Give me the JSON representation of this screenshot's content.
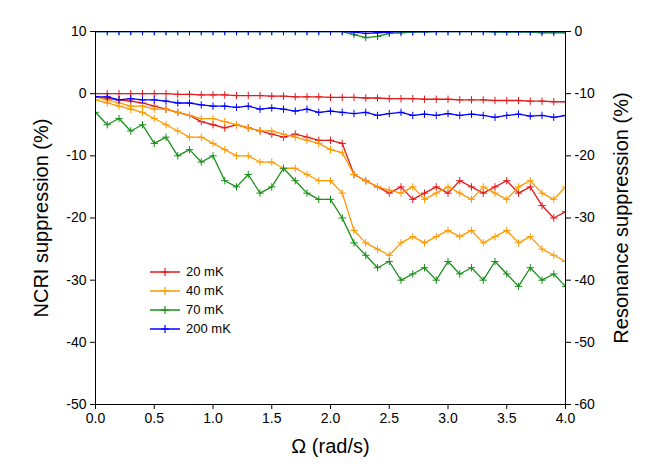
{
  "chart_data": {
    "type": "line",
    "x_label": "Ω (rad/s)",
    "y_label": "NCRI suppression (%)",
    "y2_label": "Resonance suppression (%)",
    "xlim": [
      0,
      4
    ],
    "xticks": [
      {
        "value": 0,
        "label": "0.0"
      },
      {
        "value": 0.5,
        "label": "0.5"
      },
      {
        "value": 1,
        "label": "1.0"
      },
      {
        "value": 1.5,
        "label": "1.5"
      },
      {
        "value": 2,
        "label": "2.0"
      },
      {
        "value": 2.5,
        "label": "2.5"
      },
      {
        "value": 3,
        "label": "3.0"
      },
      {
        "value": 3.5,
        "label": "3.5"
      },
      {
        "value": 4,
        "label": "4.0"
      }
    ],
    "ylim": [
      -50,
      10
    ],
    "yticks": [
      -50,
      -40,
      -30,
      -20,
      -10,
      0,
      10
    ],
    "y2lim": [
      -60,
      0
    ],
    "y2ticks": [
      -60,
      -50,
      -40,
      -30,
      -20,
      -10,
      0
    ],
    "legend": "lower left",
    "marker": "plus",
    "x": [
      0,
      0.1,
      0.2,
      0.3,
      0.4,
      0.5,
      0.6,
      0.7,
      0.8,
      0.9,
      1.0,
      1.1,
      1.2,
      1.3,
      1.4,
      1.5,
      1.6,
      1.7,
      1.8,
      1.9,
      2.0,
      2.1,
      2.2,
      2.3,
      2.4,
      2.5,
      2.6,
      2.7,
      2.8,
      2.9,
      3.0,
      3.1,
      3.2,
      3.3,
      3.4,
      3.5,
      3.6,
      3.7,
      3.8,
      3.9,
      4.0
    ],
    "series": [
      {
        "name": "20 mK",
        "color": "#e31a1c",
        "axis": "y2",
        "values": [
          -10,
          -10,
          -10,
          -10,
          -10,
          -10,
          -10,
          -10.1,
          -10.1,
          -10.2,
          -10.2,
          -10.2,
          -10.3,
          -10.3,
          -10.3,
          -10.4,
          -10.4,
          -10.5,
          -10.5,
          -10.5,
          -10.6,
          -10.6,
          -10.6,
          -10.7,
          -10.7,
          -10.8,
          -10.8,
          -10.8,
          -10.9,
          -10.9,
          -10.9,
          -11,
          -11,
          -11,
          -11.1,
          -11.1,
          -11.1,
          -11.2,
          -11.2,
          -11.3,
          -11.3
        ]
      },
      {
        "name": "40 mK",
        "color": "#ff9900",
        "axis": "y2",
        "values": [
          -11,
          -11.5,
          -12,
          -12.5,
          -13,
          -14,
          -15,
          -16,
          -17,
          -17,
          -18,
          -19,
          -20,
          -20,
          -21,
          -21,
          -22,
          -22,
          -23,
          -24,
          -24,
          -26,
          -32,
          -34,
          -35,
          -36,
          -34,
          -33,
          -34,
          -33,
          -32,
          -33,
          -32,
          -34,
          -33,
          -32,
          -34,
          -33,
          -35,
          -36,
          -37
        ]
      },
      {
        "name": "70 mK",
        "color": "#1a8f1a",
        "axis": "y2",
        "values": [
          0,
          0,
          0,
          0,
          0,
          0,
          0,
          0,
          0,
          0,
          0,
          0,
          0,
          0,
          0,
          0,
          0,
          0,
          0,
          0,
          0,
          0,
          -0.5,
          -1,
          -0.8,
          -0.3,
          -0.2,
          -0.1,
          -0.1,
          0,
          0,
          0,
          0,
          0,
          -0.1,
          -0.1,
          -0.1,
          -0.1,
          -0.2,
          -0.2,
          -0.2
        ]
      },
      {
        "name": "200 mK",
        "color": "#0000ff",
        "axis": "y2",
        "values": [
          0,
          0,
          0,
          0,
          0,
          0,
          0,
          0,
          0,
          0,
          0,
          0,
          0,
          0,
          0,
          0,
          0,
          0,
          0,
          0,
          0,
          0,
          -0.1,
          -0.3,
          -0.2,
          -0.1,
          0,
          0,
          0,
          0,
          0,
          0,
          0,
          0,
          0,
          0,
          0,
          0,
          0,
          0,
          0
        ]
      },
      {
        "name": "20 mK",
        "color": "#e31a1c",
        "axis": "y",
        "values": [
          -0.5,
          -0.8,
          -1,
          -1.2,
          -1.5,
          -2,
          -2.5,
          -3,
          -3.5,
          -4.5,
          -5,
          -5.5,
          -5,
          -5.5,
          -6,
          -6.5,
          -7,
          -6.5,
          -7,
          -7.5,
          -7.5,
          -8,
          -13,
          -14,
          -15,
          -16,
          -15,
          -17,
          -16,
          -15,
          -16,
          -14,
          -15,
          -16,
          -15,
          -14,
          -16,
          -15,
          -18,
          -20,
          -19
        ]
      },
      {
        "name": "40 mK",
        "color": "#ff9900",
        "axis": "y",
        "values": [
          -0.5,
          -1,
          -1.5,
          -2,
          -2,
          -2.5,
          -2.5,
          -3,
          -3.5,
          -4,
          -4,
          -4.5,
          -5,
          -5.5,
          -6,
          -6,
          -6.5,
          -7,
          -7.5,
          -8,
          -9,
          -9.5,
          -13,
          -14,
          -15,
          -15.5,
          -16,
          -15,
          -17,
          -16,
          -15,
          -16,
          -17,
          -15,
          -16,
          -17,
          -15,
          -14,
          -16,
          -17,
          -15
        ]
      },
      {
        "name": "70 mK",
        "color": "#1a8f1a",
        "axis": "y",
        "values": [
          -3,
          -5,
          -4,
          -6,
          -5,
          -8,
          -7,
          -10,
          -9,
          -11,
          -10,
          -14,
          -15,
          -13,
          -16,
          -15,
          -12,
          -14,
          -16,
          -17,
          -17,
          -20,
          -24,
          -26,
          -28,
          -27,
          -30,
          -29,
          -28,
          -30,
          -27,
          -29,
          -28,
          -30,
          -27,
          -29,
          -31,
          -28,
          -30,
          -29,
          -31
        ]
      },
      {
        "name": "200 mK",
        "color": "#0000ff",
        "axis": "y",
        "values": [
          -0.5,
          -0.5,
          -1,
          -0.8,
          -1,
          -1,
          -1.2,
          -1.5,
          -1.5,
          -1.8,
          -2,
          -2,
          -2.2,
          -2,
          -2.5,
          -2.3,
          -2.5,
          -2.8,
          -2.5,
          -3,
          -2.8,
          -3,
          -3.2,
          -3,
          -3.5,
          -3.2,
          -3,
          -3.5,
          -3.3,
          -3.5,
          -3.2,
          -3.5,
          -3.3,
          -3.5,
          -3.8,
          -3.5,
          -3.3,
          -3.6,
          -3.5,
          -3.8,
          -3.5
        ]
      }
    ]
  }
}
